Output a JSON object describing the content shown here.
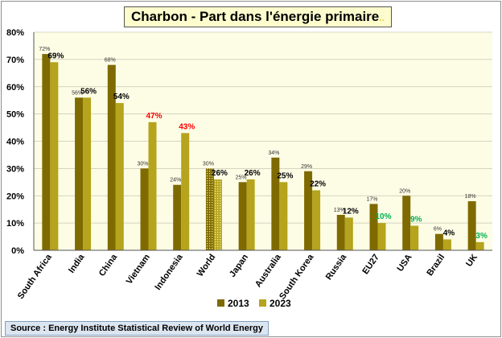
{
  "chart_data": {
    "type": "bar",
    "title": "Charbon - Part dans l'énergie primaire",
    "title_suffix": "..",
    "source": "Source : Energy Institute Statistical Review of World Energy",
    "categories": [
      "South Africa",
      "India",
      "China",
      "Vietnam",
      "Indonesia",
      "World",
      "Japan",
      "Australia",
      "South Korea",
      "Russia",
      "EU27",
      "USA",
      "Brazil",
      "UK"
    ],
    "series": [
      {
        "name": "2013",
        "color": "#7f6a00",
        "values": [
          72,
          56,
          68,
          30,
          24,
          30,
          25,
          34,
          29,
          13,
          17,
          20,
          6,
          18
        ],
        "labels": [
          "72%",
          "56%",
          "68%",
          "30%",
          "24%",
          "30%",
          "25%",
          "34%",
          "29%",
          "13%",
          "17%",
          "20%",
          "6%",
          "18%"
        ]
      },
      {
        "name": "2023",
        "color": "#b5a41c",
        "values": [
          69,
          56,
          54,
          47,
          43,
          26,
          26,
          25,
          22,
          12,
          10,
          9,
          4,
          3
        ],
        "labels": [
          "69%",
          "56%",
          "54%",
          "47%",
          "43%",
          "26%",
          "26%",
          "25%",
          "22%",
          "12%",
          "10%",
          "9%",
          "4%",
          "3%"
        ],
        "label_colors": [
          "#000000",
          "#000000",
          "#000000",
          "#ff0000",
          "#ff0000",
          "#000000",
          "#000000",
          "#000000",
          "#000000",
          "#000000",
          "#00b050",
          "#00b050",
          "#000000",
          "#00b050"
        ]
      }
    ],
    "ylim": [
      0,
      80
    ],
    "yticks": [
      "0%",
      "10%",
      "20%",
      "30%",
      "40%",
      "50%",
      "60%",
      "70%",
      "80%"
    ],
    "highlight_category": "World",
    "grid": true,
    "plot_background": "#fdfde6",
    "legend_position": "bottom"
  }
}
